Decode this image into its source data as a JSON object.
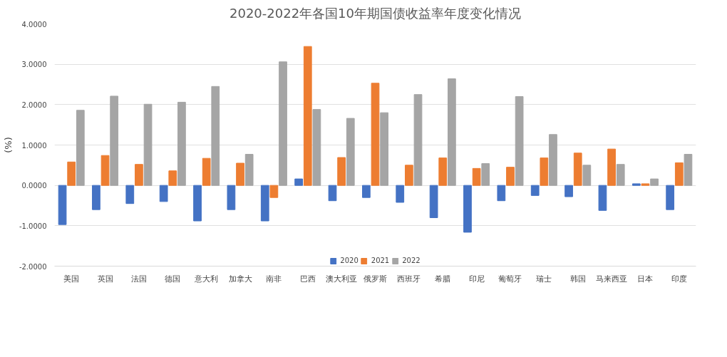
{
  "chart_data": {
    "type": "bar",
    "title": "2020-2022年各国10年期国债收益率年度变化情况",
    "ylabel": "(%)",
    "categories": [
      "美国",
      "英国",
      "法国",
      "德国",
      "意大利",
      "加拿大",
      "南非",
      "巴西",
      "澳大利亚",
      "俄罗斯",
      "西班牙",
      "希腊",
      "印尼",
      "葡萄牙",
      "瑞士",
      "韩国",
      "马来西亚",
      "日本",
      "印度"
    ],
    "series": [
      {
        "name": "2020",
        "color": "#4472c4",
        "values": [
          -0.97,
          -0.6,
          -0.45,
          -0.4,
          -0.88,
          -0.6,
          -0.88,
          0.16,
          -0.38,
          -0.3,
          -0.42,
          -0.8,
          -1.16,
          -0.38,
          -0.25,
          -0.28,
          -0.62,
          0.04,
          -0.6
        ]
      },
      {
        "name": "2021",
        "color": "#ed7d31",
        "values": [
          0.58,
          0.74,
          0.52,
          0.36,
          0.67,
          0.55,
          -0.3,
          3.44,
          0.69,
          2.53,
          0.5,
          0.68,
          0.42,
          0.45,
          0.68,
          0.8,
          0.9,
          0.04,
          0.56
        ]
      },
      {
        "name": "2022",
        "color": "#a5a5a5",
        "values": [
          1.86,
          2.21,
          2.01,
          2.06,
          2.45,
          0.77,
          3.06,
          1.88,
          1.66,
          1.8,
          2.25,
          2.64,
          0.54,
          2.2,
          1.26,
          0.5,
          0.52,
          0.16,
          0.77
        ]
      }
    ],
    "ylim": [
      -2,
      4
    ],
    "yticks": [
      {
        "value": -2,
        "label": "-2.0000"
      },
      {
        "value": -1,
        "label": "-1.0000"
      },
      {
        "value": 0,
        "label": "0.0000"
      },
      {
        "value": 1,
        "label": "1.0000"
      },
      {
        "value": 2,
        "label": "2.0000"
      },
      {
        "value": 3,
        "label": "3.0000"
      },
      {
        "value": 4,
        "label": "4.0000"
      }
    ],
    "grid": "y",
    "legend": "bottom"
  }
}
